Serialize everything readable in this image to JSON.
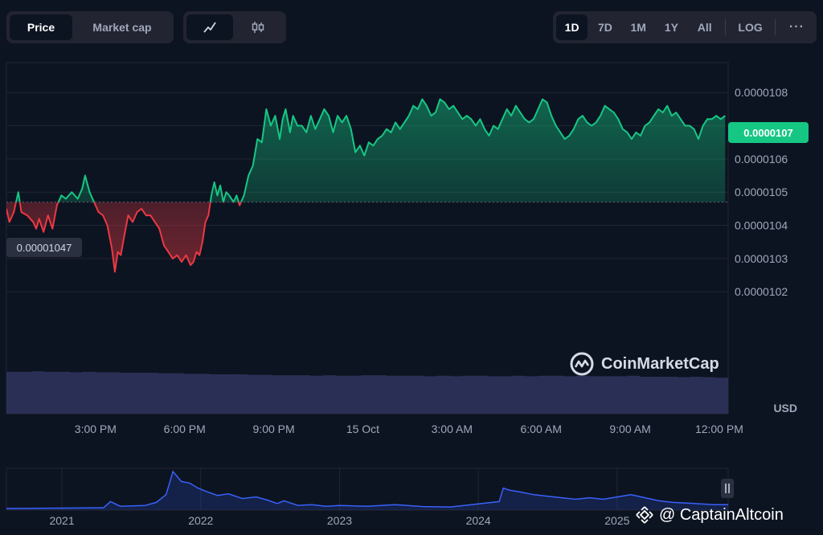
{
  "toolbar": {
    "type_tabs": [
      "Price",
      "Market cap"
    ],
    "style_icons": [
      "line-chart-icon",
      "candlestick-icon"
    ],
    "ranges": [
      "1D",
      "7D",
      "1M",
      "1Y",
      "All"
    ],
    "log_label": "LOG",
    "more_label": "···"
  },
  "current_price_label": "0.0000107",
  "open_price_label": "0.00001047",
  "currency_label": "USD",
  "watermark": "CoinMarketCap",
  "watermark2": "@ CaptainAltcoin",
  "colors": {
    "background": "#0d1421",
    "up": "#16c784",
    "down": "#ea3943",
    "volume": "#2a3055",
    "overview_line": "#3861fb"
  },
  "chart_data": [
    {
      "type": "area",
      "title": "",
      "ylabel": "",
      "y_ticks": [
        "0.0000102",
        "0.0000103",
        "0.0000104",
        "0.0000105",
        "0.0000106",
        "0.0000107",
        "0.0000108"
      ],
      "y_tick_values": [
        1.02e-05,
        1.03e-05,
        1.04e-05,
        1.05e-05,
        1.06e-05,
        1.07e-05,
        1.08e-05
      ],
      "ylim": [
        9.99e-06,
        1.089e-05
      ],
      "x_ticks": [
        "3:00 PM",
        "6:00 PM",
        "9:00 PM",
        "15 Oct",
        "3:00 AM",
        "6:00 AM",
        "9:00 AM",
        "12:00 PM"
      ],
      "x_tick_hours": [
        3,
        6,
        9,
        12,
        15,
        18,
        21,
        24
      ],
      "xlim_hours": [
        0,
        24.3
      ],
      "baseline": 1.047e-05,
      "series": [
        {
          "points": [
            [
              0,
              1.045e-05
            ],
            [
              0.1,
              1.041e-05
            ],
            [
              0.25,
              1.044e-05
            ],
            [
              0.4,
              1.05e-05
            ],
            [
              0.5,
              1.044e-05
            ],
            [
              0.7,
              1.043e-05
            ],
            [
              0.9,
              1.041e-05
            ],
            [
              1.0,
              1.039e-05
            ],
            [
              1.1,
              1.042e-05
            ],
            [
              1.25,
              1.038e-05
            ],
            [
              1.4,
              1.043e-05
            ],
            [
              1.55,
              1.039e-05
            ],
            [
              1.7,
              1.046e-05
            ],
            [
              1.85,
              1.049e-05
            ],
            [
              2.0,
              1.048e-05
            ],
            [
              2.2,
              1.05e-05
            ],
            [
              2.4,
              1.048e-05
            ],
            [
              2.55,
              1.051e-05
            ],
            [
              2.65,
              1.055e-05
            ],
            [
              2.8,
              1.05e-05
            ],
            [
              2.95,
              1.047e-05
            ],
            [
              3.1,
              1.044e-05
            ],
            [
              3.25,
              1.043e-05
            ],
            [
              3.4,
              1.04e-05
            ],
            [
              3.55,
              1.033e-05
            ],
            [
              3.65,
              1.026e-05
            ],
            [
              3.75,
              1.032e-05
            ],
            [
              3.85,
              1.031e-05
            ],
            [
              3.95,
              1.036e-05
            ],
            [
              4.1,
              1.043e-05
            ],
            [
              4.25,
              1.041e-05
            ],
            [
              4.4,
              1.044e-05
            ],
            [
              4.55,
              1.045e-05
            ],
            [
              4.7,
              1.043e-05
            ],
            [
              4.85,
              1.043e-05
            ],
            [
              5.0,
              1.041e-05
            ],
            [
              5.15,
              1.039e-05
            ],
            [
              5.3,
              1.034e-05
            ],
            [
              5.45,
              1.032e-05
            ],
            [
              5.6,
              1.03e-05
            ],
            [
              5.75,
              1.031e-05
            ],
            [
              5.9,
              1.029e-05
            ],
            [
              6.05,
              1.031e-05
            ],
            [
              6.2,
              1.028e-05
            ],
            [
              6.3,
              1.029e-05
            ],
            [
              6.4,
              1.032e-05
            ],
            [
              6.5,
              1.031e-05
            ],
            [
              6.6,
              1.035e-05
            ],
            [
              6.7,
              1.041e-05
            ],
            [
              6.8,
              1.043e-05
            ],
            [
              6.9,
              1.049e-05
            ],
            [
              7.0,
              1.053e-05
            ],
            [
              7.1,
              1.049e-05
            ],
            [
              7.2,
              1.052e-05
            ],
            [
              7.3,
              1.047e-05
            ],
            [
              7.4,
              1.05e-05
            ],
            [
              7.5,
              1.049e-05
            ],
            [
              7.65,
              1.047e-05
            ],
            [
              7.75,
              1.049e-05
            ],
            [
              7.85,
              1.046e-05
            ],
            [
              8.0,
              1.049e-05
            ],
            [
              8.15,
              1.055e-05
            ],
            [
              8.3,
              1.058e-05
            ],
            [
              8.45,
              1.066e-05
            ],
            [
              8.6,
              1.065e-05
            ],
            [
              8.75,
              1.075e-05
            ],
            [
              8.9,
              1.07e-05
            ],
            [
              9.05,
              1.073e-05
            ],
            [
              9.2,
              1.066e-05
            ],
            [
              9.3,
              1.072e-05
            ],
            [
              9.4,
              1.075e-05
            ],
            [
              9.55,
              1.068e-05
            ],
            [
              9.65,
              1.073e-05
            ],
            [
              9.8,
              1.07e-05
            ],
            [
              9.95,
              1.07e-05
            ],
            [
              10.1,
              1.068e-05
            ],
            [
              10.25,
              1.073e-05
            ],
            [
              10.4,
              1.069e-05
            ],
            [
              10.55,
              1.072e-05
            ],
            [
              10.7,
              1.075e-05
            ],
            [
              10.85,
              1.073e-05
            ],
            [
              11.0,
              1.068e-05
            ],
            [
              11.15,
              1.073e-05
            ],
            [
              11.3,
              1.071e-05
            ],
            [
              11.45,
              1.073e-05
            ],
            [
              11.6,
              1.069e-05
            ],
            [
              11.75,
              1.062e-05
            ],
            [
              11.9,
              1.064e-05
            ],
            [
              12.05,
              1.061e-05
            ],
            [
              12.2,
              1.065e-05
            ],
            [
              12.35,
              1.064e-05
            ],
            [
              12.5,
              1.066e-05
            ],
            [
              12.65,
              1.067e-05
            ],
            [
              12.8,
              1.069e-05
            ],
            [
              12.95,
              1.068e-05
            ],
            [
              13.1,
              1.071e-05
            ],
            [
              13.25,
              1.069e-05
            ],
            [
              13.4,
              1.071e-05
            ],
            [
              13.55,
              1.073e-05
            ],
            [
              13.7,
              1.076e-05
            ],
            [
              13.85,
              1.075e-05
            ],
            [
              14.0,
              1.078e-05
            ],
            [
              14.15,
              1.076e-05
            ],
            [
              14.3,
              1.073e-05
            ],
            [
              14.45,
              1.074e-05
            ],
            [
              14.6,
              1.078e-05
            ],
            [
              14.75,
              1.077e-05
            ],
            [
              14.9,
              1.075e-05
            ],
            [
              15.05,
              1.076e-05
            ],
            [
              15.2,
              1.074e-05
            ],
            [
              15.35,
              1.072e-05
            ],
            [
              15.5,
              1.073e-05
            ],
            [
              15.65,
              1.072e-05
            ],
            [
              15.8,
              1.07e-05
            ],
            [
              15.95,
              1.072e-05
            ],
            [
              16.1,
              1.069e-05
            ],
            [
              16.25,
              1.067e-05
            ],
            [
              16.4,
              1.07e-05
            ],
            [
              16.55,
              1.069e-05
            ],
            [
              16.7,
              1.072e-05
            ],
            [
              16.85,
              1.075e-05
            ],
            [
              17.0,
              1.073e-05
            ],
            [
              17.15,
              1.076e-05
            ],
            [
              17.3,
              1.074e-05
            ],
            [
              17.45,
              1.072e-05
            ],
            [
              17.6,
              1.071e-05
            ],
            [
              17.75,
              1.072e-05
            ],
            [
              17.9,
              1.075e-05
            ],
            [
              18.05,
              1.078e-05
            ],
            [
              18.2,
              1.077e-05
            ],
            [
              18.35,
              1.073e-05
            ],
            [
              18.5,
              1.07e-05
            ],
            [
              18.65,
              1.068e-05
            ],
            [
              18.8,
              1.066e-05
            ],
            [
              18.95,
              1.067e-05
            ],
            [
              19.1,
              1.069e-05
            ],
            [
              19.25,
              1.072e-05
            ],
            [
              19.4,
              1.073e-05
            ],
            [
              19.55,
              1.071e-05
            ],
            [
              19.7,
              1.07e-05
            ],
            [
              19.85,
              1.071e-05
            ],
            [
              20.0,
              1.073e-05
            ],
            [
              20.15,
              1.076e-05
            ],
            [
              20.3,
              1.075e-05
            ],
            [
              20.45,
              1.074e-05
            ],
            [
              20.6,
              1.072e-05
            ],
            [
              20.75,
              1.069e-05
            ],
            [
              20.9,
              1.068e-05
            ],
            [
              21.05,
              1.066e-05
            ],
            [
              21.2,
              1.068e-05
            ],
            [
              21.35,
              1.067e-05
            ],
            [
              21.5,
              1.07e-05
            ],
            [
              21.65,
              1.071e-05
            ],
            [
              21.8,
              1.073e-05
            ],
            [
              21.95,
              1.075e-05
            ],
            [
              22.1,
              1.074e-05
            ],
            [
              22.25,
              1.076e-05
            ],
            [
              22.4,
              1.073e-05
            ],
            [
              22.55,
              1.074e-05
            ],
            [
              22.7,
              1.072e-05
            ],
            [
              22.85,
              1.07e-05
            ],
            [
              23.0,
              1.07e-05
            ],
            [
              23.15,
              1.069e-05
            ],
            [
              23.3,
              1.066e-05
            ],
            [
              23.45,
              1.07e-05
            ],
            [
              23.6,
              1.072e-05
            ],
            [
              23.75,
              1.072e-05
            ],
            [
              23.9,
              1.073e-05
            ],
            [
              24.05,
              1.072e-05
            ],
            [
              24.2,
              1.073e-05
            ]
          ]
        }
      ],
      "volume": [
        0.78,
        0.78,
        0.79,
        0.78,
        0.78,
        0.77,
        0.78,
        0.77,
        0.77,
        0.76,
        0.76,
        0.76,
        0.75,
        0.75,
        0.74,
        0.74,
        0.73,
        0.73,
        0.73,
        0.72,
        0.72,
        0.71,
        0.71,
        0.71,
        0.7,
        0.71,
        0.7,
        0.7,
        0.71,
        0.71,
        0.7,
        0.7,
        0.7,
        0.69,
        0.7,
        0.69,
        0.7,
        0.7,
        0.69,
        0.69,
        0.7,
        0.69,
        0.7,
        0.7,
        0.69,
        0.7,
        0.69,
        0.69,
        0.69,
        0.7,
        0.68,
        0.68,
        0.68,
        0.67,
        0.68,
        0.67,
        0.66
      ]
    },
    {
      "type": "line",
      "title": "",
      "x_ticks": [
        "2021",
        "2022",
        "2023",
        "2024",
        "2025"
      ],
      "x_tick_years": [
        2021,
        2022,
        2023,
        2024,
        2025
      ],
      "xlim_years": [
        2020.6,
        2025.8
      ],
      "ylim": [
        0,
        1
      ],
      "series": [
        {
          "points": [
            [
              2020.6,
              0.02
            ],
            [
              2021.3,
              0.04
            ],
            [
              2021.35,
              0.2
            ],
            [
              2021.42,
              0.08
            ],
            [
              2021.6,
              0.1
            ],
            [
              2021.68,
              0.18
            ],
            [
              2021.75,
              0.38
            ],
            [
              2021.8,
              0.98
            ],
            [
              2021.86,
              0.72
            ],
            [
              2021.92,
              0.68
            ],
            [
              2021.98,
              0.55
            ],
            [
              2022.05,
              0.45
            ],
            [
              2022.12,
              0.36
            ],
            [
              2022.2,
              0.4
            ],
            [
              2022.3,
              0.28
            ],
            [
              2022.4,
              0.32
            ],
            [
              2022.48,
              0.24
            ],
            [
              2022.55,
              0.15
            ],
            [
              2022.6,
              0.22
            ],
            [
              2022.7,
              0.1
            ],
            [
              2022.8,
              0.12
            ],
            [
              2022.9,
              0.08
            ],
            [
              2023.0,
              0.1
            ],
            [
              2023.2,
              0.08
            ],
            [
              2023.4,
              0.12
            ],
            [
              2023.6,
              0.07
            ],
            [
              2023.8,
              0.06
            ],
            [
              2023.95,
              0.12
            ],
            [
              2024.15,
              0.2
            ],
            [
              2024.18,
              0.55
            ],
            [
              2024.22,
              0.5
            ],
            [
              2024.3,
              0.45
            ],
            [
              2024.4,
              0.38
            ],
            [
              2024.5,
              0.34
            ],
            [
              2024.6,
              0.3
            ],
            [
              2024.7,
              0.26
            ],
            [
              2024.8,
              0.3
            ],
            [
              2024.9,
              0.26
            ],
            [
              2025.0,
              0.32
            ],
            [
              2025.1,
              0.38
            ],
            [
              2025.2,
              0.3
            ],
            [
              2025.3,
              0.22
            ],
            [
              2025.4,
              0.18
            ],
            [
              2025.5,
              0.16
            ],
            [
              2025.6,
              0.14
            ],
            [
              2025.7,
              0.12
            ],
            [
              2025.8,
              0.12
            ]
          ]
        }
      ]
    }
  ]
}
